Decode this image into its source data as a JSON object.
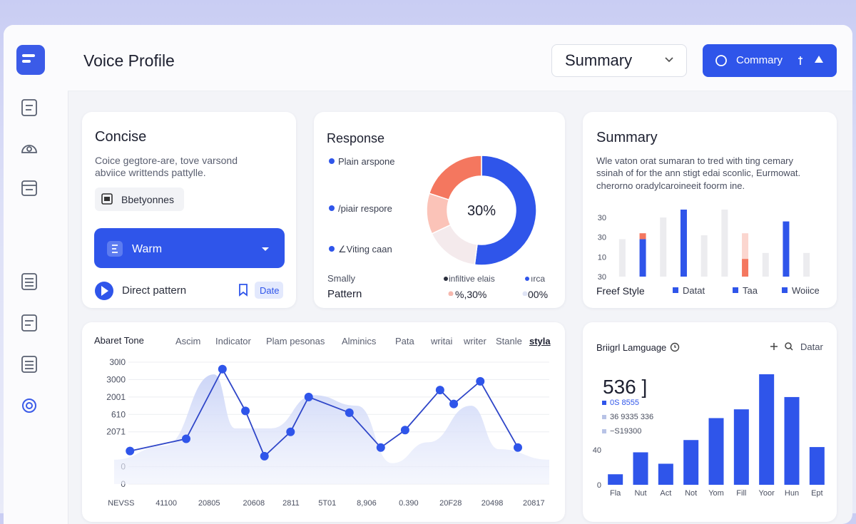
{
  "header": {
    "title": "Voice Profile",
    "dropdown": "Summary",
    "button": "Commary"
  },
  "concise": {
    "title": "Concise",
    "description": [
      "Coice gegtore-are, tove varsond",
      "abviice writtends pattylle."
    ],
    "chip": "Bbetyonnes",
    "select": "Warm",
    "row": "Direct pattern",
    "tag": "Date"
  },
  "response": {
    "title": "Response",
    "footer": [
      "Smally",
      "Pattern",
      "infiltive elais",
      "ırca",
      "%,30%",
      "00%"
    ]
  },
  "summary": {
    "title": "Summary",
    "description": [
      "Wle vaton orat sumaran to tred with ting cemary",
      "ssinah of for the ann stigt edai sconlic, Eurmowat.",
      "cherorno oradylcaroineeit foorm ine."
    ],
    "footer_label": "Freef Style"
  },
  "tone": {
    "title": "Abaret Tone",
    "tabs": [
      "Ascim",
      "Indicator",
      "Plam pesonas",
      "Alminics",
      "Pata",
      "writai",
      "writer",
      "Stanle",
      "styla"
    ],
    "active_tab": 8
  },
  "language": {
    "title": "Briigrl Lamguage",
    "action": "Datar",
    "big_number": "536 ]",
    "details": [
      "0S 8555",
      "36 9335 336",
      "−S19300"
    ]
  },
  "chart_data": [
    {
      "type": "pie",
      "donut": true,
      "center_label": "30%",
      "categories": [
        "Plain arspone",
        "/piair respore",
        "∠Viting caan",
        null
      ],
      "values": [
        52,
        16,
        12,
        20
      ],
      "colors": [
        "#2f55ea",
        "#f4eaec",
        "#fbc3b8",
        "#f4775f"
      ],
      "legend_color": "#2f55ea"
    },
    {
      "type": "bar",
      "stacked": true,
      "categories": [
        null,
        null,
        null,
        null,
        null,
        null,
        null,
        null,
        null,
        null
      ],
      "series": [
        {
          "values": [
            1.9,
            1.9,
            3.0,
            3.4,
            2.1,
            3.4,
            0.9,
            1.2,
            2.8,
            1.2
          ],
          "colors": [
            "#ececef",
            "#2f55ea",
            "#ececef",
            "#2f55ea",
            "#ececef",
            "#ececef",
            "#f4775f",
            "#ececef",
            "#2f55ea",
            "#ececef"
          ]
        },
        {
          "values": [
            null,
            0.3,
            null,
            null,
            null,
            null,
            1.3,
            null,
            null,
            null
          ],
          "colors": [
            null,
            "#f4775f",
            null,
            null,
            null,
            null,
            "#fbd6cf",
            null,
            null,
            null
          ]
        }
      ],
      "legend": [
        "Datat",
        "Taa",
        "Woiice"
      ],
      "legend_color": "#2f55ea",
      "ylim": [
        0,
        3.4
      ],
      "yticks": [
        {
          "value": 0,
          "label": "30"
        },
        {
          "value": 1,
          "label": "10"
        },
        {
          "value": 2,
          "label": "30"
        },
        {
          "value": 3,
          "label": "30"
        }
      ],
      "grid": false
    },
    {
      "type": "line",
      "series": [
        {
          "kind": "area",
          "color": "#c9d3f7",
          "x": [
            1.6,
            12.9,
            24.2,
            29.0,
            37.1,
            46.8,
            56.5,
            64.5,
            72.6,
            82.3,
            88.7,
            100
          ],
          "values": [
            1.4,
            2.2,
            6.3,
            3.2,
            3.2,
            5.1,
            4.5,
            1.2,
            2.4,
            4.5,
            2.0,
            1.4
          ]
        },
        {
          "kind": "line",
          "color": "#2f46c8",
          "x": [
            5.2,
            17.9,
            26.1,
            31.3,
            35.6,
            41.5,
            45.6,
            54.8,
            61.9,
            67.4,
            75.3,
            78.4,
            84.4,
            92.9
          ],
          "values": [
            1.9,
            2.6,
            6.6,
            4.2,
            1.6,
            3.0,
            5.0,
            4.1,
            2.1,
            3.1,
            5.4,
            4.6,
            5.9,
            2.1
          ]
        }
      ],
      "xlim": [
        0,
        100
      ],
      "xticks": [
        {
          "value": 3.2,
          "label": "NEVSS"
        },
        {
          "value": 13.4,
          "label": "41100"
        },
        {
          "value": 23.1,
          "label": "20805"
        },
        {
          "value": 33.2,
          "label": "20608"
        },
        {
          "value": 41.6,
          "label": "2811"
        },
        {
          "value": 49.8,
          "label": "5T01"
        },
        {
          "value": 58.7,
          "label": "8,906"
        },
        {
          "value": 68.2,
          "label": "0.390"
        },
        {
          "value": 77.7,
          "label": "20F28"
        },
        {
          "value": 87.1,
          "label": "20498"
        },
        {
          "value": 96.5,
          "label": "20817"
        }
      ],
      "ylim": [
        0,
        7
      ],
      "yticks": [
        0,
        {
          "value": 1,
          "label": "0"
        },
        {
          "value": 3,
          "label": "2071"
        },
        {
          "value": 4,
          "label": "610"
        },
        {
          "value": 5,
          "label": "2001"
        },
        {
          "value": 6,
          "label": "3000"
        },
        {
          "value": 7,
          "label": "30l0"
        }
      ],
      "grid": true
    },
    {
      "type": "bar",
      "categories": [
        "Fla",
        "Nut",
        "Act",
        "Not",
        "Yom",
        "Fill",
        "Yoor",
        "Hun",
        "Ept"
      ],
      "values": [
        12,
        37,
        24,
        51,
        76,
        86,
        126,
        100,
        43
      ],
      "color": "#2f55ea",
      "ylim": [
        0,
        130
      ],
      "yticks": [
        0,
        40
      ],
      "grid": false
    }
  ]
}
